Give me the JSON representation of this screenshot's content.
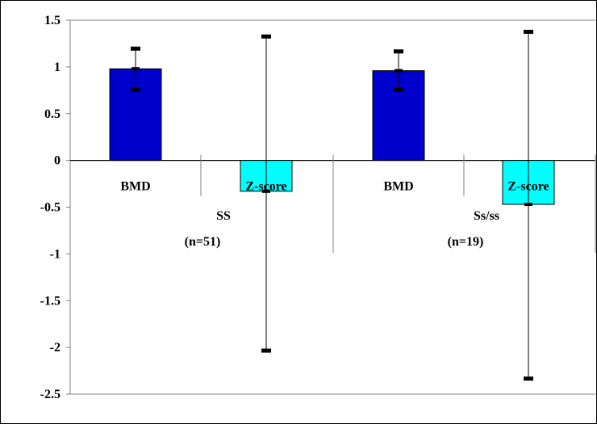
{
  "chart_data": {
    "type": "bar",
    "title": "",
    "xlabel": "",
    "ylabel": "",
    "ylim": [
      -2.5,
      1.5
    ],
    "y_ticks": [
      "1.5",
      "1",
      "0.5",
      "0",
      "-0.5",
      "-1",
      "-1.5",
      "-2",
      "-2.5"
    ],
    "grid": false,
    "legend": "none",
    "colors": {
      "BMD": "#0000CC",
      "Z-score": "#00FFFF"
    },
    "groups": [
      {
        "label_line1": "SS",
        "label_line2": "(n=51)",
        "bars": [
          {
            "label": "BMD",
            "value": 0.98,
            "error_low": 0.76,
            "error_high": 1.2
          },
          {
            "label": "Z-score",
            "value": -0.33,
            "error_low": -2.03,
            "error_high": 1.33
          }
        ]
      },
      {
        "label_line1": "Ss/ss",
        "label_line2": "(n=19)",
        "bars": [
          {
            "label": "BMD",
            "value": 0.96,
            "error_low": 0.76,
            "error_high": 1.17
          },
          {
            "label": "Z-score",
            "value": -0.47,
            "error_low": -2.33,
            "error_high": 1.38
          }
        ]
      }
    ]
  }
}
